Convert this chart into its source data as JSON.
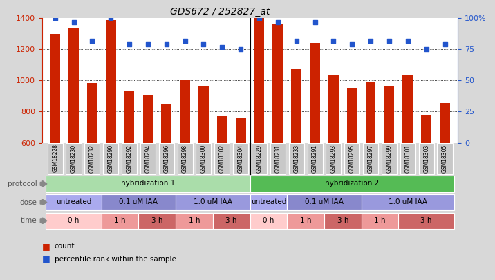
{
  "title": "GDS672 / 252827_at",
  "samples": [
    "GSM18228",
    "GSM18230",
    "GSM18232",
    "GSM18290",
    "GSM18292",
    "GSM18294",
    "GSM18296",
    "GSM18298",
    "GSM18300",
    "GSM18302",
    "GSM18304",
    "GSM18229",
    "GSM18231",
    "GSM18233",
    "GSM18291",
    "GSM18293",
    "GSM18295",
    "GSM18297",
    "GSM18299",
    "GSM18301",
    "GSM18303",
    "GSM18305"
  ],
  "counts": [
    1300,
    1340,
    985,
    1390,
    930,
    905,
    845,
    1005,
    965,
    770,
    760,
    1400,
    1365,
    1075,
    1240,
    1035,
    955,
    990,
    960,
    1035,
    775,
    855
  ],
  "percentile": [
    100,
    97,
    82,
    100,
    79,
    79,
    79,
    82,
    79,
    77,
    75,
    100,
    97,
    82,
    97,
    82,
    79,
    82,
    82,
    82,
    75,
    79
  ],
  "ylim_left": [
    600,
    1400
  ],
  "ylim_right": [
    0,
    100
  ],
  "yticks_left": [
    600,
    800,
    1000,
    1200,
    1400
  ],
  "yticks_right": [
    0,
    25,
    50,
    75,
    100
  ],
  "ytick_right_labels": [
    "0",
    "25",
    "50",
    "75",
    "100%"
  ],
  "bar_color": "#cc2200",
  "dot_color": "#2255cc",
  "background_color": "#d8d8d8",
  "plot_bg_color": "#ffffff",
  "tick_label_bg": "#c8c8c8",
  "protocol_groups": [
    {
      "label": "hybridization 1",
      "start": 0,
      "end": 11,
      "color": "#aaddaa"
    },
    {
      "label": "hybridization 2",
      "start": 11,
      "end": 22,
      "color": "#55bb55"
    }
  ],
  "dose_groups": [
    {
      "label": "untreated",
      "start": 0,
      "end": 3,
      "color": "#aaaaee"
    },
    {
      "label": "0.1 uM IAA",
      "start": 3,
      "end": 7,
      "color": "#8888cc"
    },
    {
      "label": "1.0 uM IAA",
      "start": 7,
      "end": 11,
      "color": "#9999dd"
    },
    {
      "label": "untreated",
      "start": 11,
      "end": 13,
      "color": "#aaaaee"
    },
    {
      "label": "0.1 uM IAA",
      "start": 13,
      "end": 17,
      "color": "#8888cc"
    },
    {
      "label": "1.0 uM IAA",
      "start": 17,
      "end": 22,
      "color": "#9999dd"
    }
  ],
  "time_groups": [
    {
      "label": "0 h",
      "start": 0,
      "end": 3,
      "color": "#ffcccc"
    },
    {
      "label": "1 h",
      "start": 3,
      "end": 5,
      "color": "#ee9999"
    },
    {
      "label": "3 h",
      "start": 5,
      "end": 7,
      "color": "#cc6666"
    },
    {
      "label": "1 h",
      "start": 7,
      "end": 9,
      "color": "#ee9999"
    },
    {
      "label": "3 h",
      "start": 9,
      "end": 11,
      "color": "#cc6666"
    },
    {
      "label": "0 h",
      "start": 11,
      "end": 13,
      "color": "#ffcccc"
    },
    {
      "label": "1 h",
      "start": 13,
      "end": 15,
      "color": "#ee9999"
    },
    {
      "label": "3 h",
      "start": 15,
      "end": 17,
      "color": "#cc6666"
    },
    {
      "label": "1 h",
      "start": 17,
      "end": 19,
      "color": "#ee9999"
    },
    {
      "label": "3 h",
      "start": 19,
      "end": 22,
      "color": "#cc6666"
    }
  ],
  "row_labels": [
    "protocol",
    "dose",
    "time"
  ],
  "legend_count_label": "count",
  "legend_pct_label": "percentile rank within the sample"
}
